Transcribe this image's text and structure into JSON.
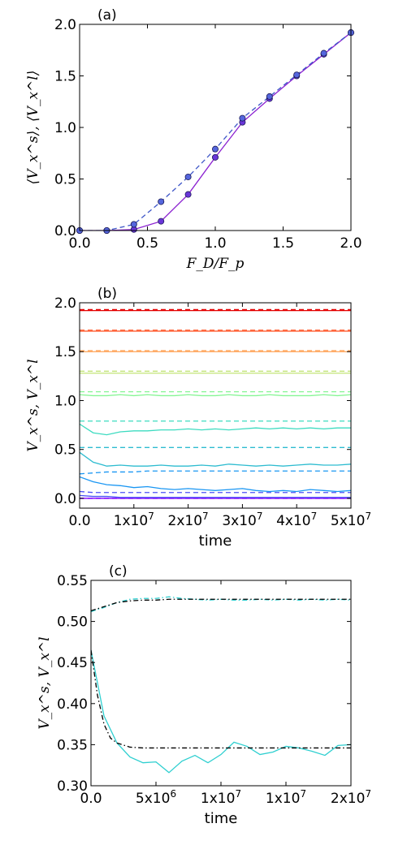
{
  "chart_data": [
    {
      "panel": "(a)",
      "type": "line",
      "xlabel": "F_D/F_p",
      "ylabel": "⟨V_x^s⟩, ⟨V_x^l⟩",
      "xlim": [
        0,
        2
      ],
      "ylim": [
        0,
        2
      ],
      "xticks": [
        "0.0",
        "0.5",
        "1.0",
        "1.5",
        "2.0"
      ],
      "yticks": [
        "0.0",
        "0.5",
        "1.0",
        "1.5",
        "2.0"
      ],
      "series": [
        {
          "style": "solid",
          "color": "#8a1fd0",
          "x": [
            0.0,
            0.2,
            0.4,
            0.6,
            0.8,
            1.0,
            1.2,
            1.4,
            1.6,
            1.8,
            2.0
          ],
          "y": [
            0.0,
            0.0,
            0.01,
            0.09,
            0.35,
            0.71,
            1.05,
            1.28,
            1.5,
            1.71,
            1.92
          ]
        },
        {
          "style": "dashed",
          "color": "#3f57c8",
          "x": [
            0.0,
            0.2,
            0.4,
            0.6,
            0.8,
            1.0,
            1.2,
            1.4,
            1.6,
            1.8,
            2.0
          ],
          "y": [
            0.0,
            0.0,
            0.06,
            0.28,
            0.52,
            0.79,
            1.09,
            1.3,
            1.51,
            1.72,
            1.92
          ]
        }
      ]
    },
    {
      "panel": "(b)",
      "type": "line",
      "xlabel": "time",
      "ylabel": "V_x^s, V_x^l",
      "xlim": [
        0,
        50000000
      ],
      "ylim": [
        -0.1,
        2.0
      ],
      "xticks": [
        "0.0",
        "1x10",
        "2x10",
        "3x10",
        "4x10",
        "5x10"
      ],
      "xtick_exp": "7",
      "yticks": [
        "0.0",
        "0.5",
        "1.0",
        "1.5",
        "2.0"
      ],
      "x": [
        0,
        2500000,
        5000000,
        7500000,
        10000000,
        12500000,
        15000000,
        17500000,
        20000000,
        22500000,
        25000000,
        27500000,
        30000000,
        32500000,
        35000000,
        37500000,
        40000000,
        42500000,
        45000000,
        47500000,
        50000000
      ],
      "series": [
        {
          "style": "dashed",
          "color": "#8000ff",
          "values": [
            0.0,
            0.0,
            0.0,
            0.0,
            0.0,
            0.0,
            0.0,
            0.0,
            0.0,
            0.0,
            0.0,
            0.0,
            0.0,
            0.0,
            0.0,
            0.0,
            0.0,
            0.0,
            0.0,
            0.0,
            0.0
          ]
        },
        {
          "style": "solid",
          "color": "#8000ff",
          "values": [
            0.0,
            0.0,
            0.0,
            0.0,
            0.0,
            0.0,
            0.0,
            0.0,
            0.0,
            0.0,
            0.0,
            0.0,
            0.0,
            0.0,
            0.0,
            0.0,
            0.0,
            0.0,
            0.0,
            0.0,
            0.0
          ]
        },
        {
          "style": "dashed",
          "color": "#4a50f6",
          "values": [
            0.07,
            0.06,
            0.06,
            0.06,
            0.06,
            0.06,
            0.06,
            0.06,
            0.06,
            0.06,
            0.06,
            0.06,
            0.06,
            0.06,
            0.06,
            0.06,
            0.06,
            0.06,
            0.06,
            0.06,
            0.06
          ]
        },
        {
          "style": "solid",
          "color": "#4a50f6",
          "values": [
            0.03,
            0.02,
            0.02,
            0.01,
            0.01,
            0.01,
            0.01,
            0.01,
            0.01,
            0.01,
            0.01,
            0.01,
            0.01,
            0.01,
            0.01,
            0.01,
            0.01,
            0.01,
            0.01,
            0.01,
            0.01
          ]
        },
        {
          "style": "dashed",
          "color": "#1996f3",
          "values": [
            0.25,
            0.26,
            0.27,
            0.27,
            0.27,
            0.28,
            0.28,
            0.28,
            0.28,
            0.28,
            0.28,
            0.28,
            0.28,
            0.28,
            0.28,
            0.28,
            0.28,
            0.28,
            0.28,
            0.28,
            0.28
          ]
        },
        {
          "style": "solid",
          "color": "#1996f3",
          "values": [
            0.22,
            0.17,
            0.14,
            0.13,
            0.11,
            0.12,
            0.1,
            0.09,
            0.1,
            0.09,
            0.08,
            0.09,
            0.1,
            0.08,
            0.07,
            0.08,
            0.07,
            0.09,
            0.08,
            0.07,
            0.08
          ]
        },
        {
          "style": "dashed",
          "color": "#2ebcd0",
          "values": [
            0.52,
            0.52,
            0.52,
            0.52,
            0.52,
            0.52,
            0.52,
            0.52,
            0.52,
            0.52,
            0.52,
            0.52,
            0.52,
            0.52,
            0.52,
            0.52,
            0.52,
            0.52,
            0.52,
            0.52,
            0.52
          ]
        },
        {
          "style": "solid",
          "color": "#2ebcd0",
          "values": [
            0.47,
            0.37,
            0.33,
            0.34,
            0.33,
            0.33,
            0.34,
            0.33,
            0.33,
            0.34,
            0.33,
            0.35,
            0.34,
            0.33,
            0.34,
            0.33,
            0.34,
            0.35,
            0.34,
            0.34,
            0.35
          ]
        },
        {
          "style": "dashed",
          "color": "#3ddbc0",
          "values": [
            0.79,
            0.79,
            0.79,
            0.79,
            0.79,
            0.79,
            0.79,
            0.79,
            0.79,
            0.79,
            0.79,
            0.79,
            0.79,
            0.79,
            0.79,
            0.79,
            0.79,
            0.79,
            0.79,
            0.79,
            0.79
          ]
        },
        {
          "style": "solid",
          "color": "#3ddbc0",
          "values": [
            0.76,
            0.67,
            0.65,
            0.68,
            0.69,
            0.69,
            0.7,
            0.7,
            0.71,
            0.7,
            0.71,
            0.7,
            0.71,
            0.72,
            0.71,
            0.72,
            0.71,
            0.72,
            0.71,
            0.72,
            0.72
          ]
        },
        {
          "style": "dashed",
          "color": "#86f594",
          "values": [
            1.09,
            1.09,
            1.09,
            1.09,
            1.09,
            1.09,
            1.09,
            1.09,
            1.09,
            1.09,
            1.09,
            1.09,
            1.09,
            1.09,
            1.09,
            1.09,
            1.09,
            1.09,
            1.09,
            1.09,
            1.09
          ]
        },
        {
          "style": "solid",
          "color": "#86f594",
          "values": [
            1.06,
            1.05,
            1.05,
            1.06,
            1.05,
            1.06,
            1.05,
            1.05,
            1.06,
            1.05,
            1.05,
            1.06,
            1.05,
            1.05,
            1.06,
            1.05,
            1.05,
            1.05,
            1.06,
            1.05,
            1.06
          ]
        },
        {
          "style": "dashed",
          "color": "#c2e477",
          "values": [
            1.3,
            1.3,
            1.3,
            1.3,
            1.3,
            1.3,
            1.3,
            1.3,
            1.3,
            1.3,
            1.3,
            1.3,
            1.3,
            1.3,
            1.3,
            1.3,
            1.3,
            1.3,
            1.3,
            1.3,
            1.3
          ]
        },
        {
          "style": "solid",
          "color": "#c2e477",
          "values": [
            1.28,
            1.28,
            1.28,
            1.28,
            1.28,
            1.28,
            1.28,
            1.28,
            1.28,
            1.28,
            1.28,
            1.28,
            1.28,
            1.28,
            1.28,
            1.28,
            1.28,
            1.28,
            1.28,
            1.28,
            1.28
          ]
        },
        {
          "style": "dashed",
          "color": "#ffa256",
          "values": [
            1.51,
            1.51,
            1.51,
            1.51,
            1.51,
            1.51,
            1.51,
            1.51,
            1.51,
            1.51,
            1.51,
            1.51,
            1.51,
            1.51,
            1.51,
            1.51,
            1.51,
            1.51,
            1.51,
            1.51,
            1.51
          ]
        },
        {
          "style": "solid",
          "color": "#ffa256",
          "values": [
            1.5,
            1.5,
            1.5,
            1.5,
            1.5,
            1.5,
            1.5,
            1.5,
            1.5,
            1.5,
            1.5,
            1.5,
            1.5,
            1.5,
            1.5,
            1.5,
            1.5,
            1.5,
            1.5,
            1.5,
            1.5
          ]
        },
        {
          "style": "dashed",
          "color": "#ff5a2d",
          "values": [
            1.72,
            1.72,
            1.72,
            1.72,
            1.72,
            1.72,
            1.72,
            1.72,
            1.72,
            1.72,
            1.72,
            1.72,
            1.72,
            1.72,
            1.72,
            1.72,
            1.72,
            1.72,
            1.72,
            1.72,
            1.72
          ]
        },
        {
          "style": "solid",
          "color": "#ff5a2d",
          "values": [
            1.71,
            1.71,
            1.71,
            1.71,
            1.71,
            1.71,
            1.71,
            1.71,
            1.71,
            1.71,
            1.71,
            1.71,
            1.71,
            1.71,
            1.71,
            1.71,
            1.71,
            1.71,
            1.71,
            1.71,
            1.71
          ]
        },
        {
          "style": "dashed",
          "color": "#e40000",
          "values": [
            1.93,
            1.93,
            1.93,
            1.93,
            1.93,
            1.93,
            1.93,
            1.93,
            1.93,
            1.93,
            1.93,
            1.93,
            1.93,
            1.93,
            1.93,
            1.93,
            1.93,
            1.93,
            1.93,
            1.93,
            1.93
          ]
        },
        {
          "style": "solid",
          "color": "#e40000",
          "values": [
            1.92,
            1.92,
            1.92,
            1.92,
            1.92,
            1.92,
            1.92,
            1.92,
            1.92,
            1.92,
            1.92,
            1.92,
            1.92,
            1.92,
            1.92,
            1.92,
            1.92,
            1.92,
            1.92,
            1.92,
            1.92
          ]
        }
      ]
    },
    {
      "panel": "(c)",
      "type": "line",
      "xlabel": "time",
      "ylabel": "V_x^s, V_x^l",
      "xlim": [
        0,
        20000000
      ],
      "ylim": [
        0.3,
        0.55
      ],
      "xticks": [
        "0.0",
        "5x10",
        "1x10",
        "1x10",
        "2x10"
      ],
      "xtick_exps": [
        "",
        "6",
        "7",
        "7",
        "7"
      ],
      "yticks": [
        "0.30",
        "0.35",
        "0.40",
        "0.45",
        "0.50",
        "0.55"
      ],
      "series": [
        {
          "style": "solid",
          "color": "#2ecfd0",
          "x": [
            0,
            1000000,
            2000000,
            3000000,
            4000000,
            5000000,
            6000000,
            7000000,
            8000000,
            9000000,
            10000000,
            11000000,
            12000000,
            13000000,
            14000000,
            15000000,
            16000000,
            17000000,
            18000000,
            19000000,
            20000000
          ],
          "y": [
            0.465,
            0.385,
            0.352,
            0.335,
            0.328,
            0.329,
            0.316,
            0.33,
            0.337,
            0.328,
            0.338,
            0.353,
            0.348,
            0.338,
            0.341,
            0.348,
            0.346,
            0.342,
            0.337,
            0.349,
            0.35
          ]
        },
        {
          "style": "dash-dot",
          "color": "#2ecfd0",
          "x": [
            0,
            1000000,
            2000000,
            3000000,
            4000000,
            5000000,
            6000000,
            7000000,
            8000000,
            9000000,
            10000000,
            11000000,
            12000000,
            13000000,
            14000000,
            15000000,
            16000000,
            17000000,
            18000000,
            19000000,
            20000000
          ],
          "y": [
            0.512,
            0.517,
            0.523,
            0.527,
            0.528,
            0.528,
            0.53,
            0.528,
            0.527,
            0.526,
            0.527,
            0.526,
            0.526,
            0.527,
            0.526,
            0.527,
            0.526,
            0.527,
            0.526,
            0.527,
            0.526
          ]
        },
        {
          "style": "dash-dot",
          "color": "#000000",
          "x": [
            0,
            500000,
            1000000,
            1500000,
            2000000,
            3000000,
            4000000,
            5000000,
            6000000,
            8000000,
            10000000,
            12000000,
            14000000,
            16000000,
            18000000,
            20000000
          ],
          "y": [
            0.465,
            0.41,
            0.375,
            0.358,
            0.352,
            0.347,
            0.346,
            0.346,
            0.346,
            0.346,
            0.346,
            0.346,
            0.346,
            0.346,
            0.346,
            0.346
          ]
        },
        {
          "style": "dash-dot",
          "color": "#000000",
          "x": [
            0,
            1000000,
            2000000,
            3000000,
            4000000,
            5000000,
            6000000,
            8000000,
            10000000,
            12000000,
            14000000,
            16000000,
            18000000,
            20000000
          ],
          "y": [
            0.513,
            0.518,
            0.523,
            0.525,
            0.526,
            0.526,
            0.527,
            0.527,
            0.527,
            0.527,
            0.527,
            0.527,
            0.527,
            0.527
          ]
        }
      ]
    }
  ]
}
